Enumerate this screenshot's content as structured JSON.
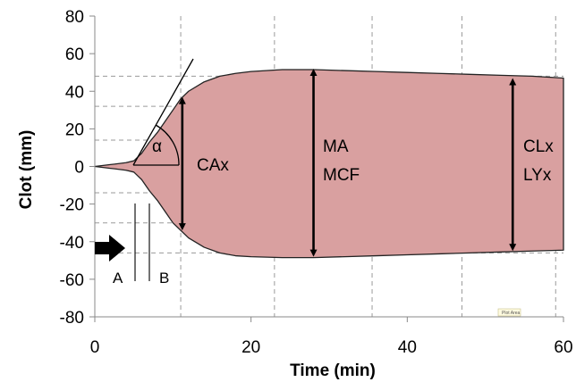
{
  "chart_data": {
    "type": "area",
    "title": "",
    "xlabel": "Time (min)",
    "ylabel": "Clot (mm)",
    "xlim": [
      0,
      60
    ],
    "ylim": [
      -80,
      80
    ],
    "x_ticks": [
      0,
      20,
      40,
      60
    ],
    "y_ticks": [
      80,
      60,
      40,
      20,
      0,
      -20,
      -40,
      -60,
      -80
    ],
    "colors": {
      "fill": "#d9a0a0",
      "stroke": "#222222",
      "grid": "#9a9a9a"
    },
    "series": [
      {
        "x": [
          0,
          2,
          4,
          5,
          5.5,
          6,
          7,
          8,
          9,
          10,
          11,
          12,
          14,
          16,
          18,
          20,
          24,
          28,
          32,
          36,
          40,
          44,
          48,
          52,
          56,
          60
        ],
        "upper": [
          0,
          1,
          2,
          3,
          5,
          7,
          13,
          18,
          24,
          30,
          36,
          40,
          45,
          48,
          49.5,
          50.5,
          51.5,
          51.5,
          51,
          50.5,
          50,
          49.5,
          49,
          48.5,
          48,
          47
        ],
        "lower": [
          0,
          -1,
          -2,
          -3,
          -5,
          -7,
          -13,
          -18,
          -24,
          -30,
          -34,
          -38,
          -43,
          -46,
          -47.5,
          -48,
          -48.5,
          -48.5,
          -48,
          -47.5,
          -47,
          -46.5,
          -46,
          -45.5,
          -45,
          -44.5
        ]
      }
    ],
    "reference_lines_x": [
      11,
      23,
      35.5,
      47,
      59
    ],
    "reference_lines_y": [
      48,
      32,
      14,
      -14,
      -30,
      -46
    ],
    "annotations": {
      "alpha": "α",
      "cax": "CAx",
      "ma": "MA",
      "mcf": "MCF",
      "clx": "CLx",
      "lyx": "LYx",
      "a": "A",
      "b": "B",
      "plot_area": "Plot Area"
    },
    "vertical_markers": [
      {
        "name": "cax-marker",
        "x": 11.2,
        "y_top": 37,
        "y_bottom": -34
      },
      {
        "name": "ma-marker",
        "x": 28,
        "y_top": 52,
        "y_bottom": -48
      },
      {
        "name": "clx-marker",
        "x": 53.5,
        "y_top": 47,
        "y_bottom": -45
      }
    ]
  }
}
